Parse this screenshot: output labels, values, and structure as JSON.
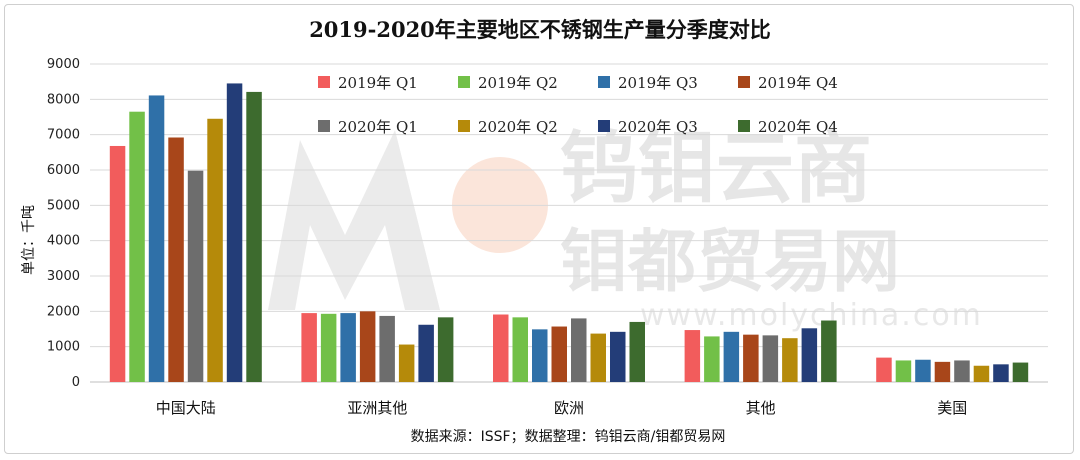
{
  "watermark": {
    "line1": "钨钼云商",
    "line2": "钼都贸易网",
    "url": "www.molychina.com"
  },
  "chart_data": {
    "type": "bar",
    "title": "2019-2020年主要地区不锈钢生产量分季度对比",
    "ylabel": "单位：千吨",
    "xlabel": "",
    "ylim": [
      0,
      9000
    ],
    "yticks": [
      0,
      1000,
      2000,
      3000,
      4000,
      5000,
      6000,
      7000,
      8000,
      9000
    ],
    "grid": true,
    "legend_position": "top",
    "categories": [
      "中国大陆",
      "亚洲其他",
      "欧洲",
      "其他",
      "美国"
    ],
    "series": [
      {
        "name": "2019年 Q1",
        "color": "#f25c5c",
        "values": [
          6680,
          1950,
          1910,
          1470,
          690
        ]
      },
      {
        "name": "2019年 Q2",
        "color": "#72c048",
        "values": [
          7650,
          1930,
          1830,
          1290,
          610
        ]
      },
      {
        "name": "2019年 Q3",
        "color": "#2f70a8",
        "values": [
          8110,
          1950,
          1490,
          1420,
          630
        ]
      },
      {
        "name": "2019年 Q4",
        "color": "#a8461a",
        "values": [
          6920,
          2000,
          1570,
          1340,
          570
        ]
      },
      {
        "name": "2020年 Q1",
        "color": "#6d6d6d",
        "values": [
          5980,
          1870,
          1800,
          1320,
          610
        ]
      },
      {
        "name": "2020年 Q2",
        "color": "#b58a0a",
        "values": [
          7450,
          1060,
          1370,
          1240,
          460
        ]
      },
      {
        "name": "2020年 Q3",
        "color": "#233d78",
        "values": [
          8450,
          1620,
          1420,
          1520,
          500
        ]
      },
      {
        "name": "2020年 Q4",
        "color": "#3d6b2e",
        "values": [
          8210,
          1830,
          1700,
          1740,
          550
        ]
      }
    ],
    "source_note": "数据来源：ISSF；数据整理：钨钼云商/钼都贸易网"
  }
}
